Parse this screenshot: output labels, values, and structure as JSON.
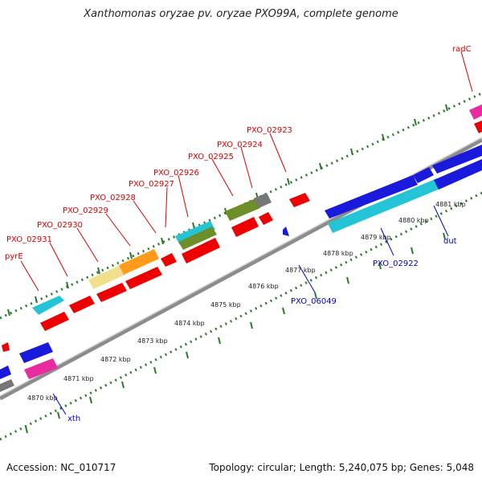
{
  "header": {
    "title": "Xanthomonas oryzae pv. oryzae PXO99A, complete genome"
  },
  "footer": {
    "accession": "Accession: NC_010717",
    "summary": "Topology: circular; Length: 5,240,075 bp; Genes: 5,048"
  },
  "colors": {
    "red": "#ee0000",
    "blue": "#1a1add",
    "cyan": "#22c4d6",
    "magenta": "#e82ca0",
    "orange": "#ff9a1a",
    "khaki": "#f0e08c",
    "olive": "#6e8e2a",
    "gray": "#777777",
    "backbone": "#8c8c8c",
    "dotted_ring": "#2a7a2a",
    "label_red": "#d80000",
    "label_blue": "#0000c8"
  },
  "scale_labels": [
    "4870 kbp",
    "4871 kbp",
    "4872 kbp",
    "4873 kbp",
    "4874 kbp",
    "4875 kbp",
    "4876 kbp",
    "4877 kbp",
    "4878 kbp",
    "4879 kbp",
    "4880 kbp",
    "4881 kbp"
  ],
  "gene_labels_top": [
    "pyrE",
    "PXO_02931",
    "PXO_02930",
    "PXO_02929",
    "PXO_02928",
    "PXO_02927",
    "PXO_02926",
    "PXO_02925",
    "PXO_02924",
    "PXO_02923",
    "radC"
  ],
  "gene_labels_bottom": [
    "xth",
    "PXO_06049",
    "PXO_02922",
    "dut"
  ]
}
